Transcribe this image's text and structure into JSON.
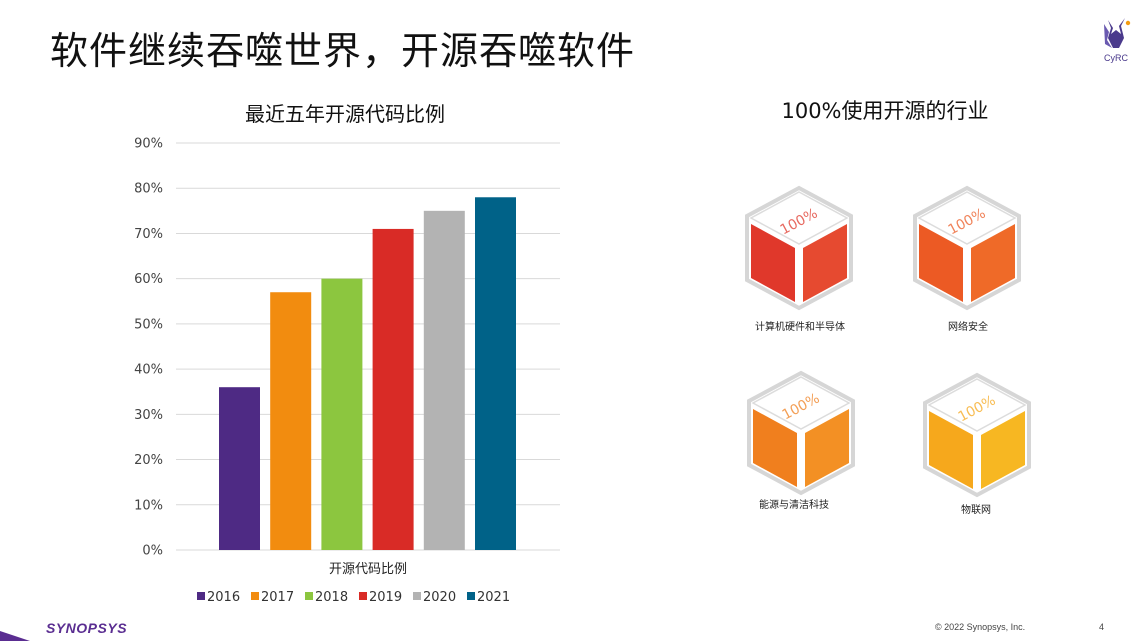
{
  "slide": {
    "title": "软件继续吞噬世界，开源吞噬软件",
    "logo_text": "CyRC",
    "right_title": "100%使用开源的行业",
    "footer_brand": "SYNOPSYS",
    "copyright": "© 2022 Synopsys, Inc.",
    "page_number": "4"
  },
  "chart_data": {
    "type": "bar",
    "title": "最近五年开源代码比例",
    "xlabel": "开源代码比例",
    "ylabel": "",
    "ylim": [
      0,
      90
    ],
    "yticks": [
      "0%",
      "10%",
      "20%",
      "30%",
      "40%",
      "50%",
      "60%",
      "70%",
      "80%",
      "90%"
    ],
    "grid": true,
    "legend_position": "bottom",
    "series": [
      {
        "name": "2016",
        "value": 36,
        "color": "#4e2a84"
      },
      {
        "name": "2017",
        "value": 57,
        "color": "#f28c0f"
      },
      {
        "name": "2018",
        "value": 60,
        "color": "#8cc63f"
      },
      {
        "name": "2019",
        "value": 71,
        "color": "#d92b26"
      },
      {
        "name": "2020",
        "value": 75,
        "color": "#b3b3b3"
      },
      {
        "name": "2021",
        "value": 78,
        "color": "#006288"
      }
    ]
  },
  "industries": [
    {
      "label": "计算机硬件和半导体",
      "badge": "100%",
      "color_left": "#e0382b",
      "color_right": "#e64a30"
    },
    {
      "label": "网络安全",
      "badge": "100%",
      "color_left": "#ec5a24",
      "color_right": "#ef6a28"
    },
    {
      "label": "能源与清洁科技",
      "badge": "100%",
      "color_left": "#f07f1e",
      "color_right": "#f39024"
    },
    {
      "label": "物联网",
      "badge": "100%",
      "color_left": "#f6a81c",
      "color_right": "#f7b722"
    }
  ]
}
